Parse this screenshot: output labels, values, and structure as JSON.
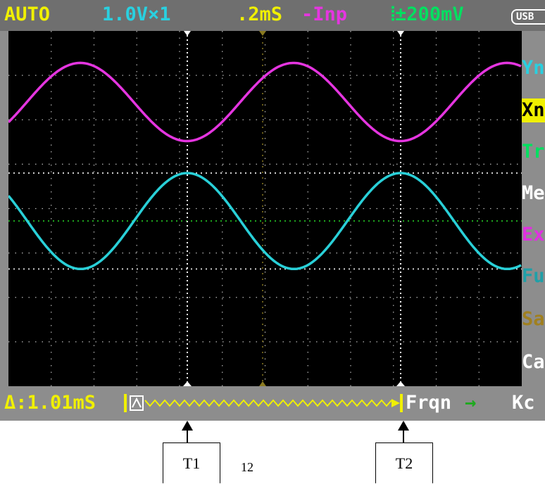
{
  "status_bar": {
    "mode": "AUTO",
    "voltage_scale": "1.0V×1",
    "timebase": ".2mS",
    "input_mode": "-Inp",
    "trigger_level": "⦙±200mV",
    "usb": "USB"
  },
  "measurement_bar": {
    "delta_time": "Δ:1.01mS",
    "measure_mode": "Frqn",
    "arrow": "→",
    "unit": "Kc"
  },
  "side_menu": [
    {
      "label": "Yn",
      "color": "#29d0e0",
      "selected": false
    },
    {
      "label": "Xn",
      "color": "#000000",
      "selected": true
    },
    {
      "label": "Tr",
      "color": "#00e060",
      "selected": false
    },
    {
      "label": "Me",
      "color": "#ffffff",
      "selected": false
    },
    {
      "label": "Ex",
      "color": "#e030e0",
      "selected": false
    },
    {
      "label": "Fu",
      "color": "#1fa0a8",
      "selected": false
    },
    {
      "label": "Sa",
      "color": "#a08020",
      "selected": false
    },
    {
      "label": "Ca",
      "color": "#ffffff",
      "selected": false
    }
  ],
  "annotations": {
    "t1": "T1",
    "t2": "T2",
    "middle": "12"
  },
  "colors": {
    "ch_a": "#e535e0",
    "ch_b": "#29d0d8",
    "trigger": "#1faa1f",
    "grid": "#b8b8b8",
    "status_yellow": "#f0f000",
    "status_cyan": "#29d0e0",
    "status_magenta": "#e535e0",
    "menu_highlight": "#f0f000"
  },
  "waveforms": {
    "channel_a": {
      "cycles_visible": 2.4,
      "peak_fraction": 0.09,
      "trough_fraction": 0.31
    },
    "channel_b": {
      "cycles_visible": 2.4,
      "peak_fraction": 0.4,
      "trough_fraction": 0.67
    },
    "trigger_level_fraction": 0.535
  },
  "cursors": [
    "T1",
    "T2"
  ]
}
